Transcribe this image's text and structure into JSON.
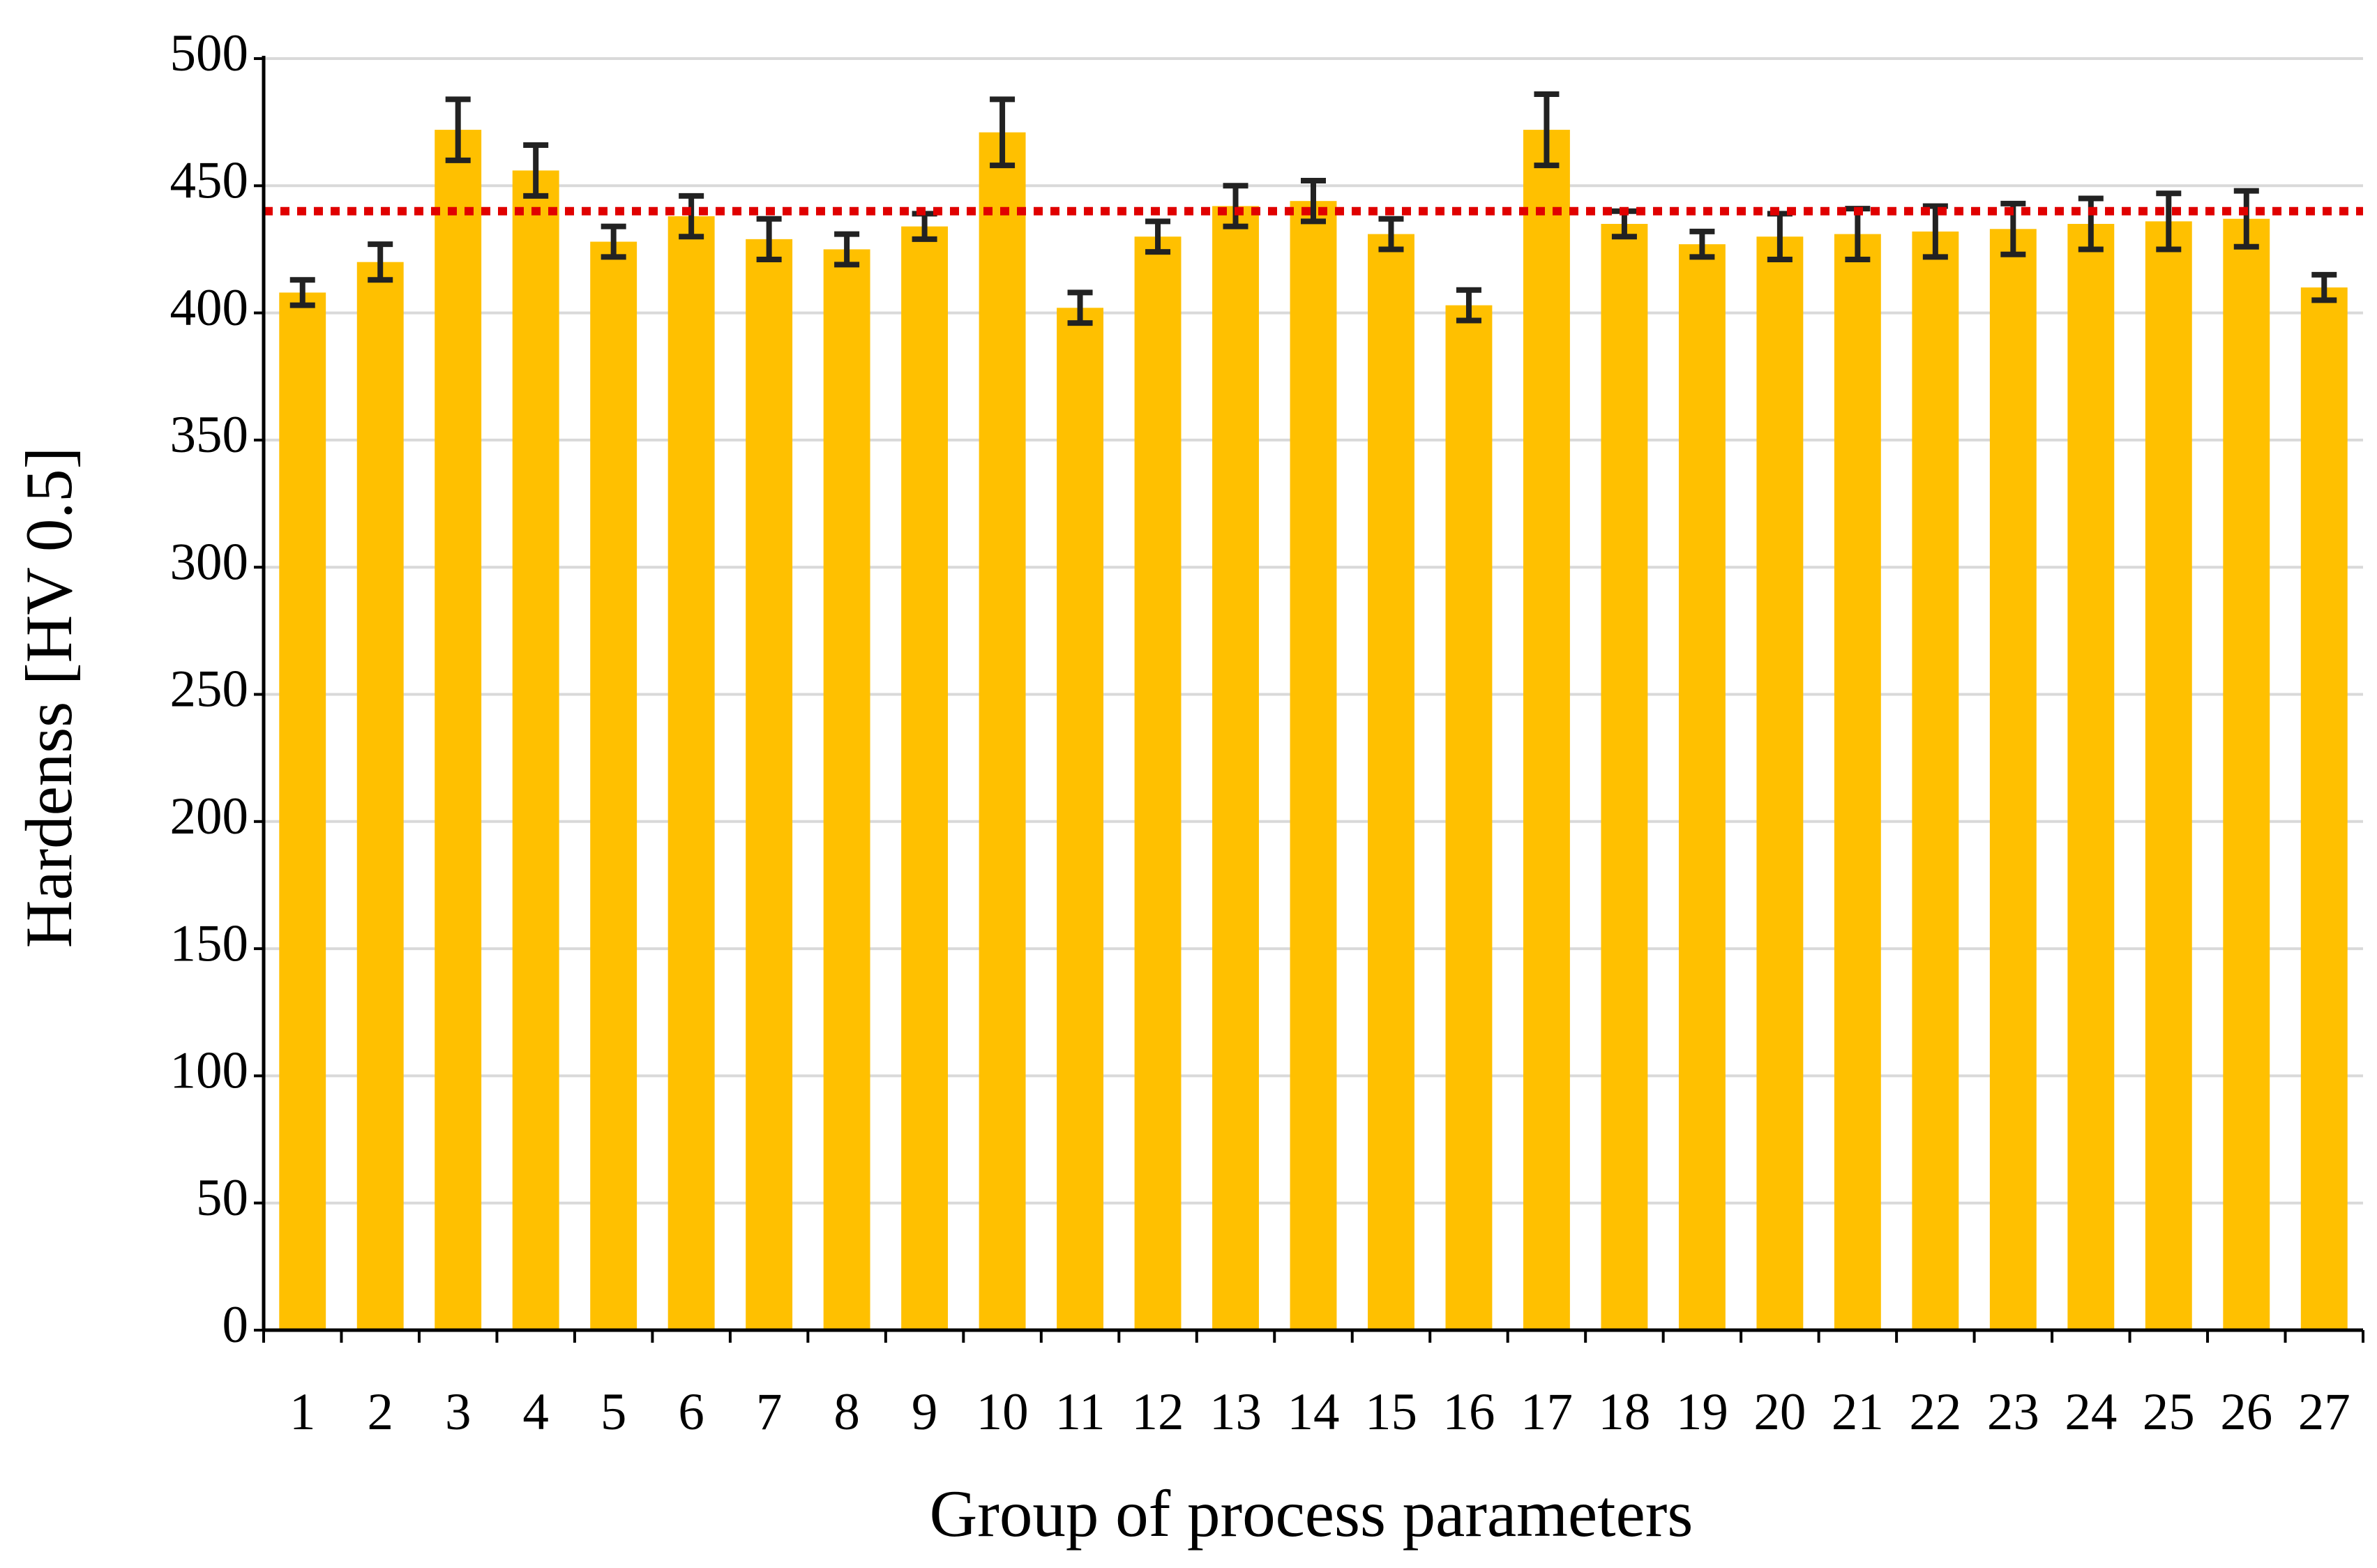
{
  "chart_data": {
    "type": "bar",
    "x_label": "Group of process parameters",
    "y_label": "Hardenss [HV 0.5]",
    "categories": [
      "1",
      "2",
      "3",
      "4",
      "5",
      "6",
      "7",
      "8",
      "9",
      "10",
      "11",
      "12",
      "13",
      "14",
      "15",
      "16",
      "17",
      "18",
      "19",
      "20",
      "21",
      "22",
      "23",
      "24",
      "25",
      "26",
      "27"
    ],
    "values": [
      408,
      420,
      472,
      456,
      428,
      438,
      429,
      425,
      434,
      471,
      402,
      430,
      442,
      444,
      431,
      403,
      472,
      435,
      427,
      430,
      431,
      432,
      433,
      435,
      436,
      437,
      410
    ],
    "errors": [
      5,
      7,
      12,
      10,
      6,
      8,
      8,
      6,
      5,
      13,
      6,
      6,
      8,
      8,
      6,
      6,
      14,
      5,
      5,
      9,
      10,
      10,
      10,
      10,
      11,
      11,
      5
    ],
    "color": "#FFC000",
    "error_color": "#222222",
    "reference_line": 440,
    "reference_color": "#E00000",
    "ylim": [
      0,
      500
    ],
    "yticks": [
      0,
      50,
      100,
      150,
      200,
      250,
      300,
      350,
      400,
      450,
      500
    ],
    "grid": true
  }
}
